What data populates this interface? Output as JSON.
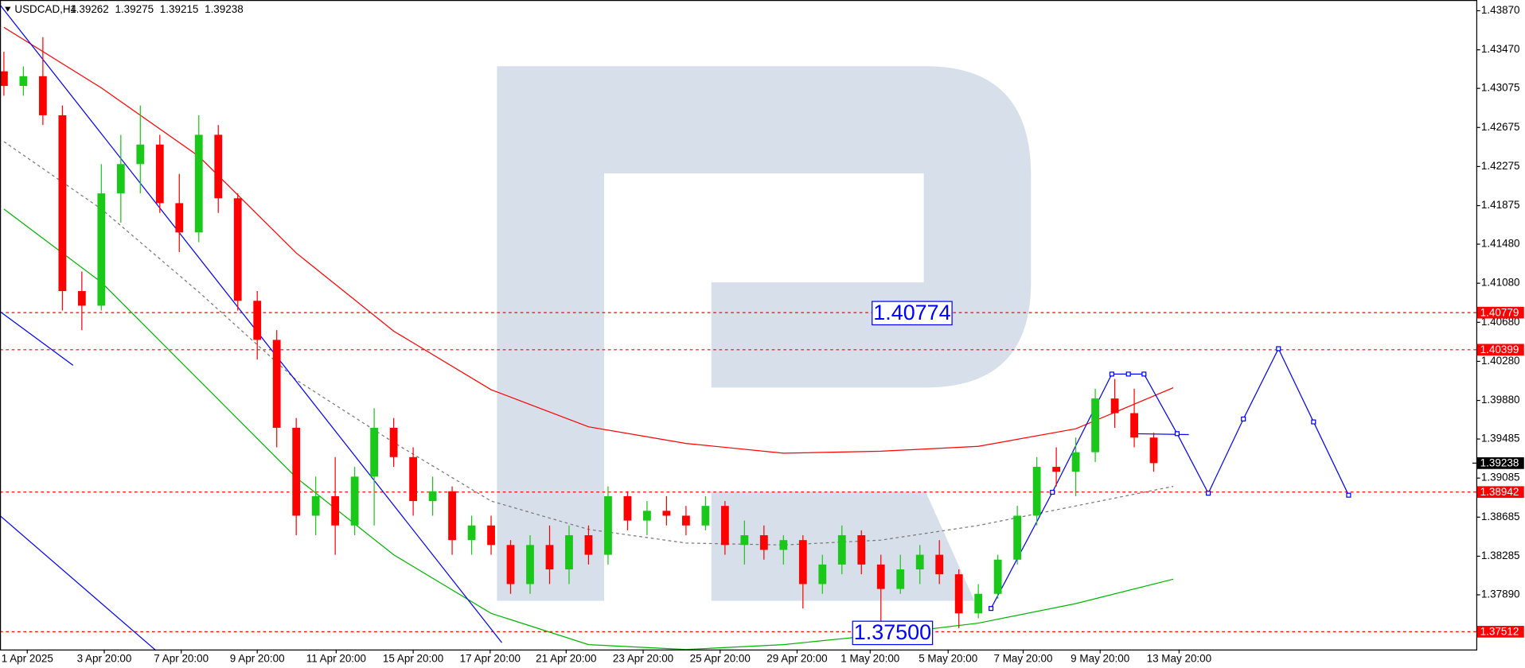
{
  "chart_data": {
    "type": "candlestick",
    "title": "USDCAD,H4",
    "header_values": [
      1.39262,
      1.39275,
      1.39215,
      1.39238
    ],
    "xlim": [
      -0.2,
      75.55
    ],
    "ylim": [
      1.3733,
      1.4398
    ],
    "yticks": [
      {
        "value": 1.4387,
        "label": "1.43870"
      },
      {
        "value": 1.4347,
        "label": "1.43470"
      },
      1.43075,
      1.42675,
      1.42275,
      1.41875,
      {
        "value": 1.4148,
        "label": "1.41480"
      },
      {
        "value": 1.4108,
        "label": "1.41080"
      },
      {
        "value": 1.4068,
        "label": "1.40680"
      },
      {
        "value": 1.4028,
        "label": "1.40280"
      },
      {
        "value": 1.3988,
        "label": "1.39880"
      },
      1.39485,
      1.39085,
      1.38685,
      1.38285,
      {
        "value": 1.3789,
        "label": "1.37890"
      }
    ],
    "xticks": [
      {
        "value": 1.2,
        "label": "1 Apr 2025"
      },
      {
        "value": 5.15,
        "label": "3 Apr 20:00"
      },
      {
        "value": 9.1,
        "label": "7 Apr 20:00"
      },
      {
        "value": 13,
        "label": "9 Apr 20:00"
      },
      {
        "value": 17.05,
        "label": "11 Apr 20:00"
      },
      {
        "value": 21,
        "label": "15 Apr 20:00"
      },
      {
        "value": 24.95,
        "label": "17 Apr 20:00"
      },
      {
        "value": 28.85,
        "label": "21 Apr 20:00"
      },
      {
        "value": 32.8,
        "label": "23 Apr 20:00"
      },
      {
        "value": 36.75,
        "label": "25 Apr 20:00"
      },
      {
        "value": 40.7,
        "label": "29 Apr 20:00"
      },
      {
        "value": 44.45,
        "label": "1 May 20:00"
      },
      {
        "value": 48.45,
        "label": "5 May 20:00"
      },
      {
        "value": 52.3,
        "label": "7 May 20:00"
      },
      {
        "value": 56.25,
        "label": "9 May 20:00"
      },
      {
        "value": 60.3,
        "label": "13 May 20:00"
      }
    ],
    "up_color": "#19c819",
    "down_color": "#ff0000",
    "open": [
      1.4325,
      1.431,
      1.432,
      1.428,
      1.41,
      1.4085,
      1.42,
      1.423,
      1.425,
      1.419,
      1.416,
      1.426,
      1.4195,
      1.409,
      1.405,
      1.396,
      1.387,
      1.389,
      1.386,
      1.391,
      1.396,
      1.393,
      1.3885,
      1.3895,
      1.3845,
      1.386,
      1.384,
      1.38,
      1.384,
      1.3815,
      1.385,
      1.383,
      1.389,
      1.3865,
      1.3875,
      1.387,
      1.386,
      1.388,
      1.384,
      1.385,
      1.3835,
      1.3845,
      1.38,
      1.382,
      1.385,
      1.382,
      1.3795,
      1.3815,
      1.383,
      1.381,
      1.377,
      1.379,
      1.3825,
      1.387,
      1.392,
      1.3915,
      1.3935,
      1.399,
      1.3975,
      1.395
    ],
    "high": [
      1.4345,
      1.433,
      1.436,
      1.429,
      1.412,
      1.423,
      1.426,
      1.429,
      1.426,
      1.422,
      1.428,
      1.427,
      1.42,
      1.41,
      1.406,
      1.397,
      1.391,
      1.393,
      1.392,
      1.398,
      1.397,
      1.394,
      1.391,
      1.39,
      1.387,
      1.387,
      1.3845,
      1.385,
      1.386,
      1.386,
      1.386,
      1.39,
      1.3895,
      1.3885,
      1.389,
      1.388,
      1.389,
      1.3885,
      1.3865,
      1.386,
      1.385,
      1.385,
      1.383,
      1.386,
      1.3855,
      1.383,
      1.383,
      1.384,
      1.3845,
      1.3815,
      1.38,
      1.383,
      1.388,
      1.393,
      1.394,
      1.395,
      1.4,
      1.401,
      1.4,
      1.3955
    ],
    "low": [
      1.43,
      1.43,
      1.427,
      1.408,
      1.406,
      1.408,
      1.417,
      1.42,
      1.418,
      1.414,
      1.415,
      1.418,
      1.408,
      1.403,
      1.394,
      1.385,
      1.385,
      1.383,
      1.385,
      1.386,
      1.392,
      1.387,
      1.387,
      1.383,
      1.383,
      1.383,
      1.379,
      1.379,
      1.38,
      1.38,
      1.382,
      1.382,
      1.3855,
      1.385,
      1.386,
      1.385,
      1.3855,
      1.383,
      1.382,
      1.3825,
      1.382,
      1.3775,
      1.379,
      1.381,
      1.381,
      1.376,
      1.379,
      1.38,
      1.38,
      1.3755,
      1.3765,
      1.3785,
      1.382,
      1.386,
      1.39,
      1.389,
      1.3925,
      1.396,
      1.394,
      1.3915
    ],
    "close": [
      1.431,
      1.432,
      1.428,
      1.41,
      1.4085,
      1.42,
      1.423,
      1.425,
      1.419,
      1.416,
      1.426,
      1.4195,
      1.409,
      1.405,
      1.396,
      1.387,
      1.389,
      1.386,
      1.391,
      1.396,
      1.393,
      1.3885,
      1.3895,
      1.3845,
      1.386,
      1.384,
      1.38,
      1.384,
      1.3815,
      1.385,
      1.383,
      1.389,
      1.3865,
      1.3875,
      1.387,
      1.386,
      1.388,
      1.384,
      1.385,
      1.3835,
      1.3845,
      1.38,
      1.382,
      1.385,
      1.382,
      1.3795,
      1.3815,
      1.383,
      1.381,
      1.377,
      1.379,
      1.3825,
      1.387,
      1.392,
      1.3915,
      1.3935,
      1.399,
      1.3975,
      1.395,
      1.39238
    ],
    "lines": [
      {
        "color": "#ff0000",
        "style": "solid",
        "x": [
          0,
          5,
          10,
          15,
          20,
          25,
          30,
          35,
          40,
          45,
          50,
          55,
          60
        ],
        "values": [
          1.437,
          1.4308,
          1.4238,
          1.4139,
          1.4059,
          1.3999,
          1.3961,
          1.3944,
          1.3934,
          1.3936,
          1.3941,
          1.3959,
          1.4001
        ]
      },
      {
        "color": "#00b400",
        "style": "solid",
        "x": [
          0,
          5,
          10,
          15,
          20,
          25,
          30,
          35,
          40,
          45,
          50,
          55,
          60
        ],
        "values": [
          1.4184,
          1.4109,
          1.4009,
          1.3909,
          1.383,
          1.377,
          1.3738,
          1.3733,
          1.3738,
          1.3748,
          1.376,
          1.378,
          1.3805
        ]
      },
      {
        "color": "#777777",
        "style": "dashed",
        "x": [
          0,
          5,
          10,
          15,
          20,
          25,
          30,
          35,
          40,
          45,
          50,
          55,
          60
        ],
        "values": [
          1.4253,
          1.4184,
          1.4099,
          1.4009,
          1.3945,
          1.3885,
          1.3856,
          1.3842,
          1.384,
          1.3845,
          1.386,
          1.388,
          1.39
        ]
      },
      {
        "color": "#0000ff",
        "style": "solid",
        "x": [
          -0.2,
          25.55
        ],
        "values": [
          1.4393,
          1.374
        ]
      },
      {
        "color": "#0000ff",
        "style": "solid",
        "x": [
          -0.2,
          3.55
        ],
        "values": [
          1.4079,
          1.4024
        ]
      },
      {
        "color": "#0000ff",
        "style": "solid",
        "x": [
          -0.2,
          7.8
        ],
        "values": [
          1.387,
          1.3732
        ]
      },
      {
        "color": "#0000ff",
        "style": "solid",
        "x": [
          57.8,
          60.8
        ],
        "values": [
          1.3954,
          1.3953
        ]
      },
      {
        "color": "#0000ff",
        "style": "markers",
        "x": [
          50.65,
          53.8,
          56.85,
          57.7,
          58.5,
          60.2,
          61.8,
          63.6,
          65.4,
          67.2,
          69.0
        ],
        "values": [
          1.3775,
          1.3894,
          1.4015,
          1.4015,
          1.4015,
          1.3954,
          1.3893,
          1.3969,
          1.4041,
          1.3966,
          1.3891
        ]
      }
    ],
    "levels": [
      {
        "value": 1.40779,
        "color": "#ff0000"
      },
      {
        "value": 1.40399,
        "color": "#ff0000"
      },
      {
        "value": 1.38942,
        "color": "#ff0000"
      },
      {
        "value": 1.37512,
        "color": "#ff0000"
      }
    ],
    "current_price": 1.39238,
    "annotations": [
      {
        "label": "1.40774",
        "value": 1.40774,
        "x": 44.55
      },
      {
        "label": "1.37500",
        "value": 1.375,
        "x": 43.55
      }
    ]
  }
}
